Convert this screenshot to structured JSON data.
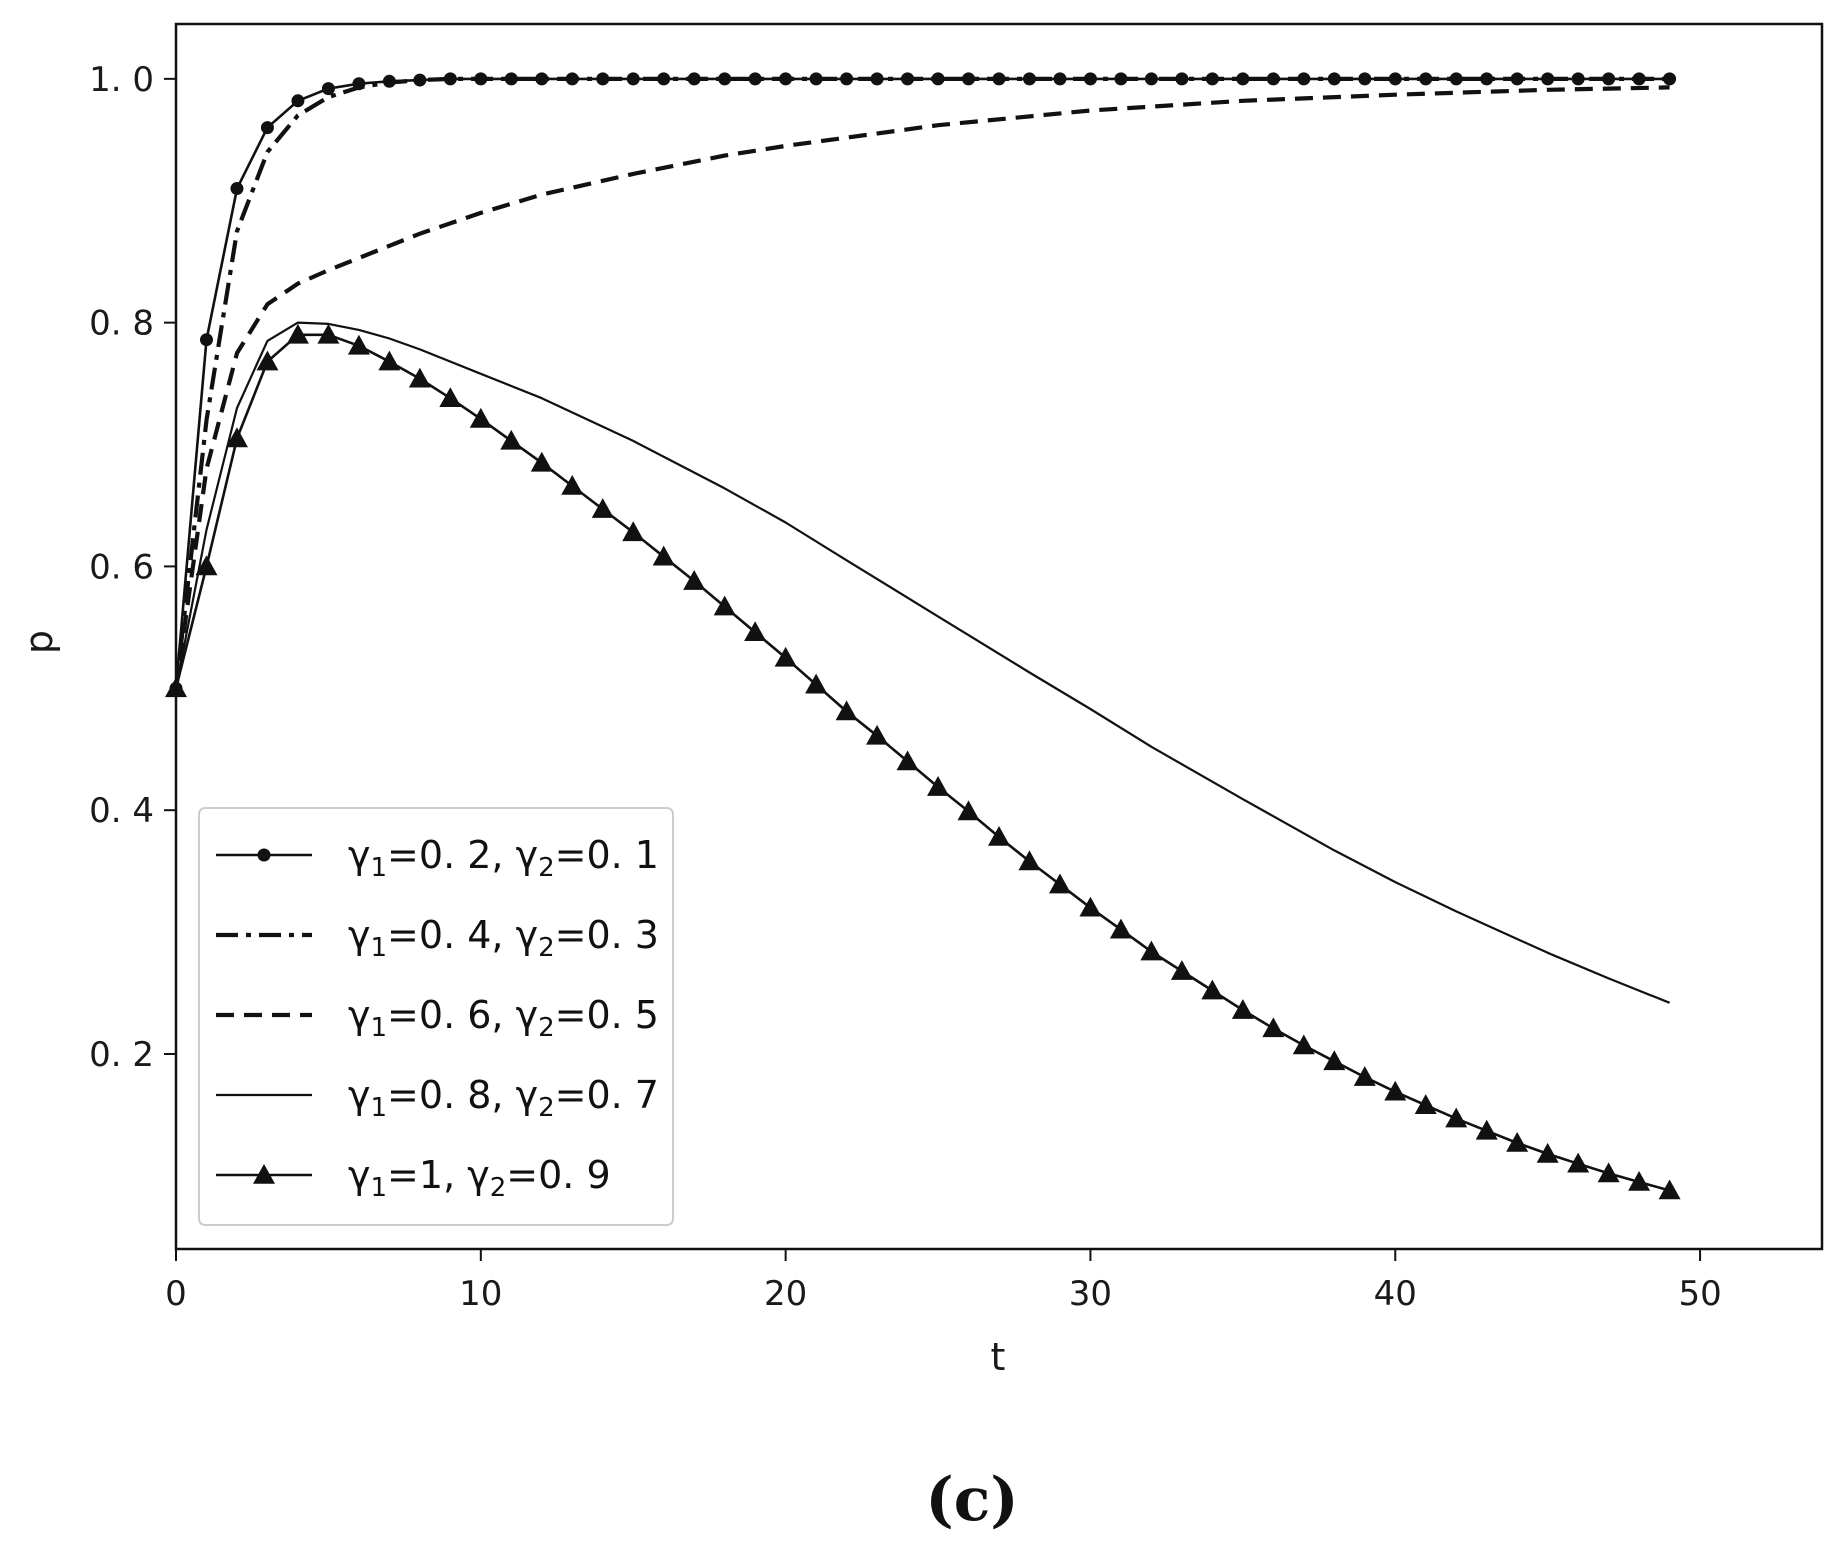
{
  "chart_data": {
    "type": "line",
    "xlabel": "t",
    "ylabel": "p",
    "xlim": [
      0,
      54
    ],
    "ylim": [
      0.04,
      1.045
    ],
    "xticks": [
      0,
      10,
      20,
      30,
      40,
      50
    ],
    "xtick_labels": [
      "0",
      "10",
      "20",
      "30",
      "40",
      "50"
    ],
    "yticks": [
      0.2,
      0.4,
      0.6,
      0.8,
      1.0
    ],
    "ytick_labels": [
      "0. 2",
      "0. 4",
      "0. 6",
      "0. 8",
      "1. 0"
    ],
    "grid": false,
    "legend_position": "lower-left",
    "panel_label": "(c)",
    "series": [
      {
        "name": "γ1=0. 2, γ2=0. 1",
        "legend": {
          "g1": "γ",
          "s1": "1",
          "v1": "=0. 2, ",
          "g2": "γ",
          "s2": "2",
          "v2": "=0. 1"
        },
        "style": "solid-circle",
        "x": [
          0,
          1,
          2,
          3,
          4,
          5,
          6,
          7,
          8,
          9,
          10,
          11,
          12,
          13,
          14,
          15,
          16,
          17,
          18,
          19,
          20,
          21,
          22,
          23,
          24,
          25,
          26,
          27,
          28,
          29,
          30,
          31,
          32,
          33,
          34,
          35,
          36,
          37,
          38,
          39,
          40,
          41,
          42,
          43,
          44,
          45,
          46,
          47,
          48,
          49
        ],
        "y": [
          0.5,
          0.786,
          0.91,
          0.96,
          0.982,
          0.992,
          0.996,
          0.998,
          0.999,
          1.0,
          1.0,
          1.0,
          1.0,
          1.0,
          1.0,
          1.0,
          1.0,
          1.0,
          1.0,
          1.0,
          1.0,
          1.0,
          1.0,
          1.0,
          1.0,
          1.0,
          1.0,
          1.0,
          1.0,
          1.0,
          1.0,
          1.0,
          1.0,
          1.0,
          1.0,
          1.0,
          1.0,
          1.0,
          1.0,
          1.0,
          1.0,
          1.0,
          1.0,
          1.0,
          1.0,
          1.0,
          1.0,
          1.0,
          1.0,
          1.0
        ]
      },
      {
        "name": "γ1=0. 4, γ2=0. 3",
        "legend": {
          "g1": "γ",
          "s1": "1",
          "v1": "=0. 4, ",
          "g2": "γ",
          "s2": "2",
          "v2": "=0. 3"
        },
        "style": "dashdot",
        "x": [
          0,
          1,
          2,
          3,
          4,
          5,
          6,
          7,
          8,
          9,
          10,
          12,
          15,
          20,
          25,
          30,
          35,
          40,
          45,
          49
        ],
        "y": [
          0.5,
          0.72,
          0.875,
          0.94,
          0.97,
          0.985,
          0.993,
          0.997,
          0.999,
          1.0,
          1.0,
          1.0,
          1.0,
          1.0,
          1.0,
          1.0,
          1.0,
          1.0,
          1.0,
          1.0
        ]
      },
      {
        "name": "γ1=0. 6, γ2=0. 5",
        "legend": {
          "g1": "γ",
          "s1": "1",
          "v1": "=0. 6, ",
          "g2": "γ",
          "s2": "2",
          "v2": "=0. 5"
        },
        "style": "dashed",
        "x": [
          0,
          1,
          2,
          3,
          4,
          5,
          6,
          7,
          8,
          10,
          12,
          15,
          18,
          20,
          25,
          30,
          35,
          40,
          45,
          49
        ],
        "y": [
          0.5,
          0.68,
          0.775,
          0.815,
          0.832,
          0.843,
          0.853,
          0.863,
          0.873,
          0.89,
          0.905,
          0.922,
          0.937,
          0.945,
          0.962,
          0.974,
          0.982,
          0.987,
          0.991,
          0.993
        ]
      },
      {
        "name": "γ1=0. 8, γ2=0. 7",
        "legend": {
          "g1": "γ",
          "s1": "1",
          "v1": "=0. 8, ",
          "g2": "γ",
          "s2": "2",
          "v2": "=0. 7"
        },
        "style": "solid-thin",
        "x": [
          0,
          1,
          2,
          3,
          4,
          5,
          6,
          7,
          8,
          10,
          12,
          15,
          18,
          20,
          22,
          25,
          28,
          30,
          32,
          35,
          38,
          40,
          42,
          45,
          47,
          49
        ],
        "y": [
          0.5,
          0.63,
          0.73,
          0.785,
          0.8,
          0.799,
          0.794,
          0.787,
          0.778,
          0.758,
          0.738,
          0.703,
          0.664,
          0.636,
          0.605,
          0.559,
          0.513,
          0.483,
          0.452,
          0.409,
          0.367,
          0.341,
          0.317,
          0.283,
          0.262,
          0.242
        ]
      },
      {
        "name": "γ1=1, γ2=0. 9",
        "legend": {
          "g1": "γ",
          "s1": "1",
          "v1": "=1, ",
          "g2": "γ",
          "s2": "2",
          "v2": "=0. 9"
        },
        "style": "solid-triangle",
        "x": [
          0,
          1,
          2,
          3,
          4,
          5,
          6,
          7,
          8,
          9,
          10,
          11,
          12,
          13,
          14,
          15,
          16,
          17,
          18,
          19,
          20,
          21,
          22,
          23,
          24,
          25,
          26,
          27,
          28,
          29,
          30,
          31,
          32,
          33,
          34,
          35,
          36,
          37,
          38,
          39,
          40,
          41,
          42,
          43,
          44,
          45,
          46,
          47,
          48,
          49
        ],
        "y": [
          0.5,
          0.6,
          0.705,
          0.768,
          0.79,
          0.79,
          0.781,
          0.768,
          0.754,
          0.738,
          0.721,
          0.703,
          0.685,
          0.666,
          0.647,
          0.628,
          0.608,
          0.588,
          0.567,
          0.546,
          0.525,
          0.503,
          0.481,
          0.461,
          0.44,
          0.419,
          0.399,
          0.378,
          0.358,
          0.339,
          0.32,
          0.302,
          0.284,
          0.268,
          0.252,
          0.236,
          0.221,
          0.207,
          0.194,
          0.181,
          0.169,
          0.158,
          0.147,
          0.137,
          0.127,
          0.118,
          0.11,
          0.102,
          0.095,
          0.088
        ]
      }
    ]
  }
}
